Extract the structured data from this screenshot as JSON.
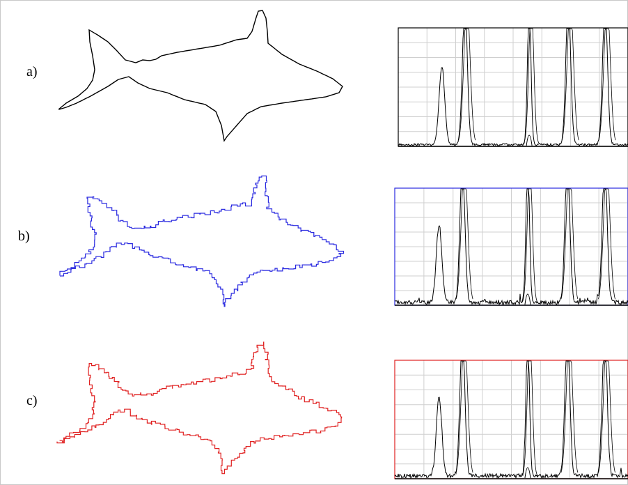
{
  "panels": [
    {
      "label": "a)",
      "color": "#000000"
    },
    {
      "label": "b)",
      "color": "#2a2ae0"
    },
    {
      "label": "c)",
      "color": "#e02020"
    }
  ]
}
